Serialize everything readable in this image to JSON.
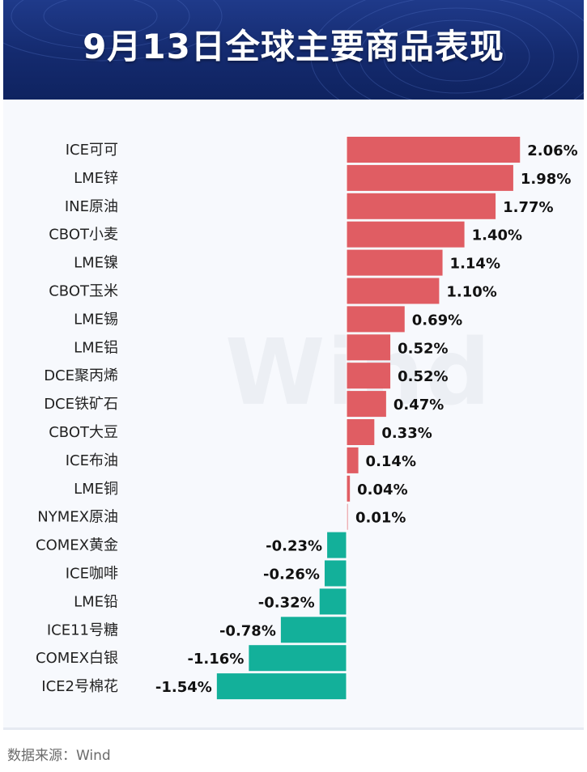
{
  "header": {
    "title": "9月13日全球主要商品表现"
  },
  "watermark": "Wind",
  "footer": {
    "source": "数据来源：Wind"
  },
  "colors": {
    "header_bg": "#1a3480",
    "positive_bar": "#e05d63",
    "negative_bar": "#13b09a",
    "panel_bg": "#f7f9fd"
  },
  "chart_data": {
    "type": "bar",
    "orientation": "horizontal",
    "unit": "%",
    "categories": [
      "ICE可可",
      "LME锌",
      "INE原油",
      "CBOT小麦",
      "LME镍",
      "CBOT玉米",
      "LME锡",
      "LME铝",
      "DCE聚丙烯",
      "DCE铁矿石",
      "CBOT大豆",
      "ICE布油",
      "LME铜",
      "NYMEX原油",
      "COMEX黄金",
      "ICE咖啡",
      "LME铅",
      "ICE11号糖",
      "COMEX白银",
      "ICE2号棉花"
    ],
    "values": [
      2.06,
      1.98,
      1.77,
      1.4,
      1.14,
      1.1,
      0.69,
      0.52,
      0.52,
      0.47,
      0.33,
      0.14,
      0.04,
      0.01,
      -0.23,
      -0.26,
      -0.32,
      -0.78,
      -1.16,
      -1.54
    ],
    "value_labels": [
      "2.06%",
      "1.98%",
      "1.77%",
      "1.40%",
      "1.14%",
      "1.10%",
      "0.69%",
      "0.52%",
      "0.52%",
      "0.47%",
      "0.33%",
      "0.14%",
      "0.04%",
      "0.01%",
      "-0.23%",
      "-0.26%",
      "-0.32%",
      "-0.78%",
      "-1.16%",
      "-1.54%"
    ],
    "title": "9月13日全球主要商品表现",
    "xlabel": "",
    "ylabel": "",
    "grid": false,
    "legend": false
  }
}
